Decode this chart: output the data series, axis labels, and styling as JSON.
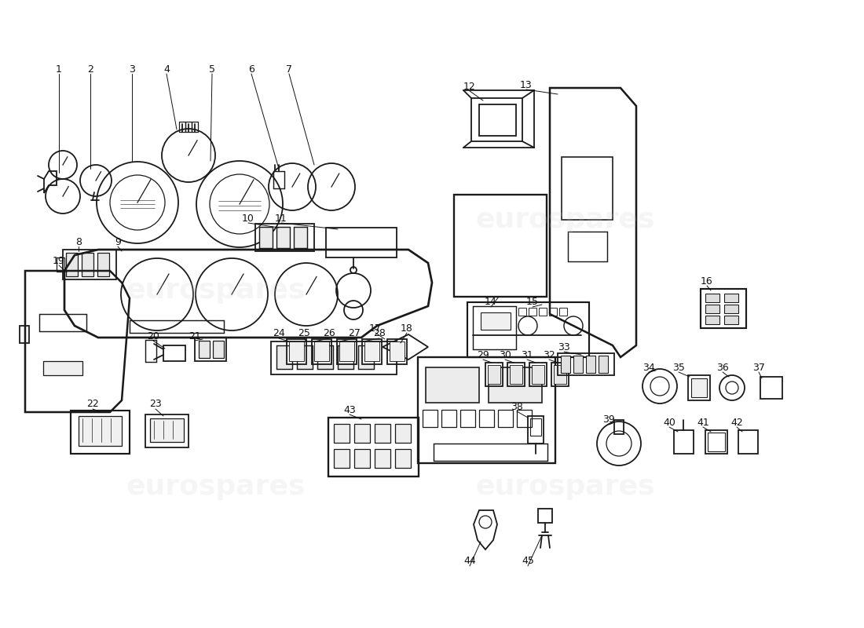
{
  "background_color": "#ffffff",
  "watermark_text": "eurospares",
  "watermark_color": "#cccccc",
  "line_color": "#1a1a1a",
  "label_color": "#111111",
  "fig_width": 11.0,
  "fig_height": 8.0,
  "dpi": 100
}
